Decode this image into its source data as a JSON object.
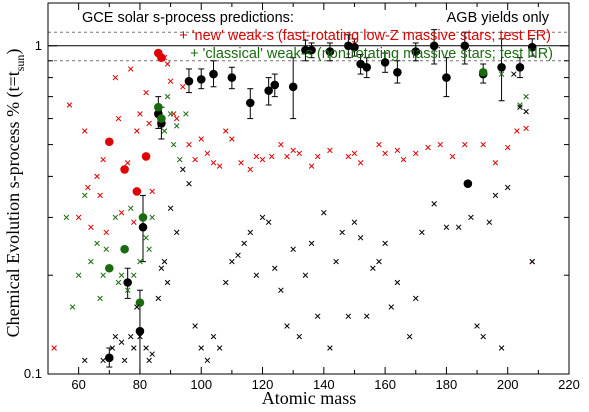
{
  "chart_data": {
    "type": "scatter",
    "xlabel": "Atomic mass",
    "ylabel": "Chemical Evolution s-process % (t=t",
    "ylabel_sub": "sun",
    "ylabel_close": ")",
    "xlim": [
      50,
      220
    ],
    "ylim": [
      0.1,
      1.35
    ],
    "y_scale": "log",
    "x_ticks": [
      60,
      80,
      100,
      120,
      140,
      160,
      180,
      200,
      220
    ],
    "y_tick_labels": [
      {
        "value": 0.1,
        "label": "0.1"
      },
      {
        "value": 1,
        "label": "1"
      }
    ],
    "reference_lines": [
      {
        "y": 1.0,
        "style": "solid"
      },
      {
        "y": 0.9,
        "style": "dashed"
      },
      {
        "y": 1.1,
        "style": "dashed"
      }
    ],
    "legend": {
      "title": "GCE solar s-process predictions:",
      "right_title": "AGB yields only",
      "entries": [
        {
          "text": "+ 'new' weak-s (fast-rotating low-Z massive stars; test FR)",
          "color": "#e00000"
        },
        {
          "text": "+ 'classical' weak-s (non-rotating massive stars; test NR)",
          "color": "#1a6b10"
        }
      ]
    },
    "series": [
      {
        "name": "AGB yields only",
        "marker": "circle",
        "color": "#000000",
        "points": [
          {
            "x": 70,
            "y": 0.112,
            "err": [
              0.105,
              0.12
            ]
          },
          {
            "x": 76,
            "y": 0.19,
            "err": [
              0.17,
              0.21
            ]
          },
          {
            "x": 80,
            "y": 0.135,
            "err": [
              0.1,
              0.18
            ]
          },
          {
            "x": 81,
            "y": 0.28,
            "err": [
              0.22,
              0.35
            ]
          },
          {
            "x": 86,
            "y": 0.62,
            "err": [
              0.56,
              0.7
            ]
          },
          {
            "x": 87,
            "y": 0.58,
            "err": [
              0.52,
              0.65
            ]
          },
          {
            "x": 96,
            "y": 0.78,
            "err": [
              0.72,
              0.85
            ]
          },
          {
            "x": 100,
            "y": 0.79,
            "err": [
              0.74,
              0.85
            ]
          },
          {
            "x": 104,
            "y": 0.82,
            "err": [
              0.75,
              0.9
            ]
          },
          {
            "x": 110,
            "y": 0.8,
            "err": [
              0.74,
              0.86
            ]
          },
          {
            "x": 116,
            "y": 0.67,
            "err": [
              0.6,
              0.74
            ]
          },
          {
            "x": 122,
            "y": 0.73,
            "err": [
              0.66,
              0.8
            ]
          },
          {
            "x": 124,
            "y": 0.76,
            "err": [
              0.7,
              0.82
            ]
          },
          {
            "x": 130,
            "y": 0.75,
            "err": [
              0.6,
              0.92
            ]
          },
          {
            "x": 134,
            "y": 0.97,
            "err": [
              0.9,
              1.04
            ]
          },
          {
            "x": 136,
            "y": 0.97,
            "err": [
              0.92,
              1.02
            ]
          },
          {
            "x": 142,
            "y": 0.96,
            "err": [
              0.9,
              1.02
            ]
          },
          {
            "x": 148,
            "y": 1.0,
            "err": [
              0.92,
              1.08
            ]
          },
          {
            "x": 150,
            "y": 0.99,
            "err": [
              0.93,
              1.05
            ]
          },
          {
            "x": 152,
            "y": 0.88,
            "err": [
              0.82,
              0.94
            ]
          },
          {
            "x": 154,
            "y": 0.86,
            "err": [
              0.8,
              0.92
            ]
          },
          {
            "x": 160,
            "y": 0.89,
            "err": [
              0.83,
              0.95
            ]
          },
          {
            "x": 164,
            "y": 0.83,
            "err": [
              0.77,
              0.9
            ]
          },
          {
            "x": 170,
            "y": 0.96,
            "err": [
              0.9,
              1.02
            ]
          },
          {
            "x": 176,
            "y": 1.0,
            "err": [
              0.88,
              1.12
            ]
          },
          {
            "x": 180,
            "y": 0.8,
            "err": [
              0.7,
              0.92
            ]
          },
          {
            "x": 186,
            "y": 1.0,
            "err": [
              0.88,
              1.1
            ]
          },
          {
            "x": 187,
            "y": 0.38,
            "err": [
              0.38,
              0.38
            ]
          },
          {
            "x": 192,
            "y": 0.82,
            "err": [
              0.77,
              0.88
            ]
          },
          {
            "x": 198,
            "y": 0.86,
            "err": [
              0.68,
              1.05
            ]
          },
          {
            "x": 204,
            "y": 0.86,
            "err": [
              0.8,
              0.92
            ]
          },
          {
            "x": 208,
            "y": 0.99,
            "err": [
              0.93,
              1.05
            ]
          }
        ]
      },
      {
        "name": "'new' weak-s (test FR)",
        "marker": "circle",
        "color": "#e00000",
        "points": [
          {
            "x": 70,
            "y": 0.51
          },
          {
            "x": 75,
            "y": 0.42
          },
          {
            "x": 79,
            "y": 0.36
          },
          {
            "x": 82,
            "y": 0.46
          },
          {
            "x": 86,
            "y": 0.95
          },
          {
            "x": 87,
            "y": 0.92
          }
        ]
      },
      {
        "name": "'classical' weak-s (test NR)",
        "marker": "circle",
        "color": "#1a6b10",
        "points": [
          {
            "x": 70,
            "y": 0.21
          },
          {
            "x": 75,
            "y": 0.24
          },
          {
            "x": 80,
            "y": 0.165
          },
          {
            "x": 81,
            "y": 0.3
          },
          {
            "x": 86,
            "y": 0.65
          },
          {
            "x": 87,
            "y": 0.6
          },
          {
            "x": 192,
            "y": 0.83
          }
        ]
      },
      {
        "name": "isotope crosses (red)",
        "marker": "cross",
        "color": "#e00000",
        "points": [
          {
            "x": 52,
            "y": 0.12
          },
          {
            "x": 57,
            "y": 0.66
          },
          {
            "x": 60,
            "y": 0.3
          },
          {
            "x": 62,
            "y": 0.55
          },
          {
            "x": 63,
            "y": 0.37
          },
          {
            "x": 64,
            "y": 0.28
          },
          {
            "x": 66,
            "y": 0.4
          },
          {
            "x": 67,
            "y": 0.35
          },
          {
            "x": 68,
            "y": 0.45
          },
          {
            "x": 69,
            "y": 0.27
          },
          {
            "x": 72,
            "y": 0.8
          },
          {
            "x": 73,
            "y": 0.6
          },
          {
            "x": 74,
            "y": 0.31
          },
          {
            "x": 76,
            "y": 0.44
          },
          {
            "x": 77,
            "y": 0.85
          },
          {
            "x": 78,
            "y": 0.29
          },
          {
            "x": 79,
            "y": 0.55
          },
          {
            "x": 80,
            "y": 0.62
          },
          {
            "x": 82,
            "y": 0.72
          },
          {
            "x": 83,
            "y": 0.58
          },
          {
            "x": 84,
            "y": 0.36
          },
          {
            "x": 88,
            "y": 0.92
          },
          {
            "x": 89,
            "y": 0.88
          },
          {
            "x": 90,
            "y": 0.78
          },
          {
            "x": 91,
            "y": 0.62
          },
          {
            "x": 92,
            "y": 0.6
          },
          {
            "x": 94,
            "y": 0.75
          },
          {
            "x": 96,
            "y": 0.5
          },
          {
            "x": 98,
            "y": 0.45
          },
          {
            "x": 100,
            "y": 0.52
          },
          {
            "x": 102,
            "y": 0.47
          },
          {
            "x": 104,
            "y": 0.44
          },
          {
            "x": 106,
            "y": 0.43
          },
          {
            "x": 108,
            "y": 0.55
          },
          {
            "x": 110,
            "y": 0.52
          },
          {
            "x": 113,
            "y": 0.44
          },
          {
            "x": 116,
            "y": 0.42
          },
          {
            "x": 118,
            "y": 0.46
          },
          {
            "x": 120,
            "y": 0.45
          },
          {
            "x": 123,
            "y": 0.46
          },
          {
            "x": 126,
            "y": 0.5
          },
          {
            "x": 128,
            "y": 0.46
          },
          {
            "x": 130,
            "y": 0.48
          },
          {
            "x": 132,
            "y": 0.47
          },
          {
            "x": 136,
            "y": 0.43
          },
          {
            "x": 138,
            "y": 0.46
          },
          {
            "x": 142,
            "y": 0.48
          },
          {
            "x": 148,
            "y": 0.46
          },
          {
            "x": 150,
            "y": 0.47
          },
          {
            "x": 152,
            "y": 0.44
          },
          {
            "x": 158,
            "y": 0.5
          },
          {
            "x": 160,
            "y": 0.47
          },
          {
            "x": 164,
            "y": 0.48
          },
          {
            "x": 166,
            "y": 0.45
          },
          {
            "x": 170,
            "y": 0.47
          },
          {
            "x": 174,
            "y": 0.49
          },
          {
            "x": 178,
            "y": 0.5
          },
          {
            "x": 182,
            "y": 0.46
          },
          {
            "x": 186,
            "y": 0.5
          },
          {
            "x": 192,
            "y": 0.5
          },
          {
            "x": 196,
            "y": 0.44
          },
          {
            "x": 200,
            "y": 0.49
          },
          {
            "x": 203,
            "y": 0.55
          },
          {
            "x": 206,
            "y": 0.56
          },
          {
            "x": 208,
            "y": 0.22
          }
        ]
      },
      {
        "name": "isotope crosses (green)",
        "marker": "cross",
        "color": "#1a6b10",
        "points": [
          {
            "x": 56,
            "y": 0.3
          },
          {
            "x": 58,
            "y": 0.16
          },
          {
            "x": 60,
            "y": 0.2
          },
          {
            "x": 62,
            "y": 0.35
          },
          {
            "x": 64,
            "y": 0.22
          },
          {
            "x": 66,
            "y": 0.25
          },
          {
            "x": 67,
            "y": 0.17
          },
          {
            "x": 68,
            "y": 0.2
          },
          {
            "x": 69,
            "y": 0.24
          },
          {
            "x": 72,
            "y": 0.3
          },
          {
            "x": 73,
            "y": 0.19
          },
          {
            "x": 74,
            "y": 0.2
          },
          {
            "x": 76,
            "y": 0.18
          },
          {
            "x": 77,
            "y": 0.32
          },
          {
            "x": 78,
            "y": 0.2
          },
          {
            "x": 80,
            "y": 0.22
          },
          {
            "x": 82,
            "y": 0.26
          },
          {
            "x": 83,
            "y": 0.24
          },
          {
            "x": 84,
            "y": 0.3
          },
          {
            "x": 88,
            "y": 0.55
          },
          {
            "x": 89,
            "y": 0.7
          },
          {
            "x": 90,
            "y": 0.62
          },
          {
            "x": 91,
            "y": 0.5
          },
          {
            "x": 92,
            "y": 0.57
          },
          {
            "x": 93,
            "y": 0.45
          },
          {
            "x": 95,
            "y": 0.62
          },
          {
            "x": 198,
            "y": 0.82
          },
          {
            "x": 204,
            "y": 0.66
          },
          {
            "x": 206,
            "y": 0.7
          }
        ]
      },
      {
        "name": "isotope crosses (black)",
        "marker": "cross",
        "color": "#000000",
        "points": [
          {
            "x": 62,
            "y": 0.11
          },
          {
            "x": 68,
            "y": 0.11
          },
          {
            "x": 71,
            "y": 0.12
          },
          {
            "x": 72,
            "y": 0.13
          },
          {
            "x": 74,
            "y": 0.125
          },
          {
            "x": 75,
            "y": 0.11
          },
          {
            "x": 77,
            "y": 0.13
          },
          {
            "x": 78,
            "y": 0.12
          },
          {
            "x": 79,
            "y": 0.16
          },
          {
            "x": 80,
            "y": 0.13
          },
          {
            "x": 82,
            "y": 0.12
          },
          {
            "x": 83,
            "y": 0.11
          },
          {
            "x": 84,
            "y": 0.115
          },
          {
            "x": 86,
            "y": 0.17
          },
          {
            "x": 87,
            "y": 0.21
          },
          {
            "x": 88,
            "y": 0.22
          },
          {
            "x": 89,
            "y": 0.19
          },
          {
            "x": 90,
            "y": 0.32
          },
          {
            "x": 92,
            "y": 0.27
          },
          {
            "x": 94,
            "y": 0.42
          },
          {
            "x": 96,
            "y": 0.38
          },
          {
            "x": 98,
            "y": 0.14
          },
          {
            "x": 100,
            "y": 0.12
          },
          {
            "x": 102,
            "y": 0.11
          },
          {
            "x": 104,
            "y": 0.13
          },
          {
            "x": 106,
            "y": 0.12
          },
          {
            "x": 108,
            "y": 0.19
          },
          {
            "x": 110,
            "y": 0.22
          },
          {
            "x": 112,
            "y": 0.23
          },
          {
            "x": 114,
            "y": 0.25
          },
          {
            "x": 116,
            "y": 0.27
          },
          {
            "x": 118,
            "y": 0.2
          },
          {
            "x": 120,
            "y": 0.3
          },
          {
            "x": 122,
            "y": 0.29
          },
          {
            "x": 124,
            "y": 0.21
          },
          {
            "x": 126,
            "y": 0.18
          },
          {
            "x": 128,
            "y": 0.14
          },
          {
            "x": 130,
            "y": 0.24
          },
          {
            "x": 132,
            "y": 0.13
          },
          {
            "x": 134,
            "y": 0.2
          },
          {
            "x": 136,
            "y": 0.25
          },
          {
            "x": 138,
            "y": 0.15
          },
          {
            "x": 140,
            "y": 0.31
          },
          {
            "x": 142,
            "y": 0.12
          },
          {
            "x": 144,
            "y": 0.22
          },
          {
            "x": 146,
            "y": 0.27
          },
          {
            "x": 148,
            "y": 0.15
          },
          {
            "x": 150,
            "y": 0.29
          },
          {
            "x": 152,
            "y": 0.26
          },
          {
            "x": 154,
            "y": 0.15
          },
          {
            "x": 156,
            "y": 0.21
          },
          {
            "x": 158,
            "y": 0.22
          },
          {
            "x": 160,
            "y": 0.25
          },
          {
            "x": 162,
            "y": 0.16
          },
          {
            "x": 164,
            "y": 0.19
          },
          {
            "x": 168,
            "y": 0.13
          },
          {
            "x": 170,
            "y": 0.17
          },
          {
            "x": 172,
            "y": 0.27
          },
          {
            "x": 176,
            "y": 0.33
          },
          {
            "x": 180,
            "y": 0.28
          },
          {
            "x": 184,
            "y": 0.28
          },
          {
            "x": 188,
            "y": 0.3
          },
          {
            "x": 190,
            "y": 0.14
          },
          {
            "x": 192,
            "y": 0.13
          },
          {
            "x": 194,
            "y": 0.29
          },
          {
            "x": 196,
            "y": 0.35
          },
          {
            "x": 198,
            "y": 0.12
          },
          {
            "x": 200,
            "y": 0.37
          },
          {
            "x": 202,
            "y": 0.82
          },
          {
            "x": 204,
            "y": 0.65
          },
          {
            "x": 206,
            "y": 0.63
          },
          {
            "x": 208,
            "y": 0.22
          }
        ]
      }
    ]
  }
}
